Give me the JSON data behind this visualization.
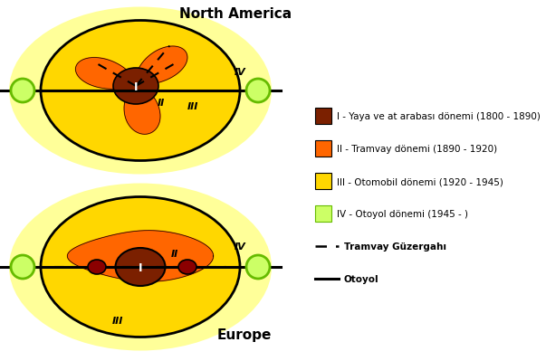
{
  "title_na": "North America",
  "title_eu": "Europe",
  "bg_color": "#ffffff",
  "color_I": "#7B2000",
  "color_II": "#FF6600",
  "color_III_inner": "#FFD700",
  "color_III_outer": "#FFFF99",
  "color_IV_fill": "#CCFF66",
  "color_IV_border": "#66BB00",
  "color_darkred": "#8B0000",
  "legend_items": [
    {
      "color": "#7B2000",
      "border": "#000000",
      "label": "I - Yaya ve at arabası dönemi (1800 - 1890)"
    },
    {
      "color": "#FF6600",
      "border": "#000000",
      "label": "II - Tramvay dönemi (1890 - 1920)"
    },
    {
      "color": "#FFD700",
      "border": "#000000",
      "label": "III - Otomobil dönemi (1920 - 1945)"
    },
    {
      "color": "#CCFF66",
      "border": "#66BB00",
      "label": "IV - Otoyol dönemi (1945 - )"
    }
  ],
  "legend_dashed": "Tramvay Güzergahı",
  "legend_solid": "Otoyol",
  "font_size_title": 11,
  "font_size_label": 7.5,
  "font_size_roman": 9
}
